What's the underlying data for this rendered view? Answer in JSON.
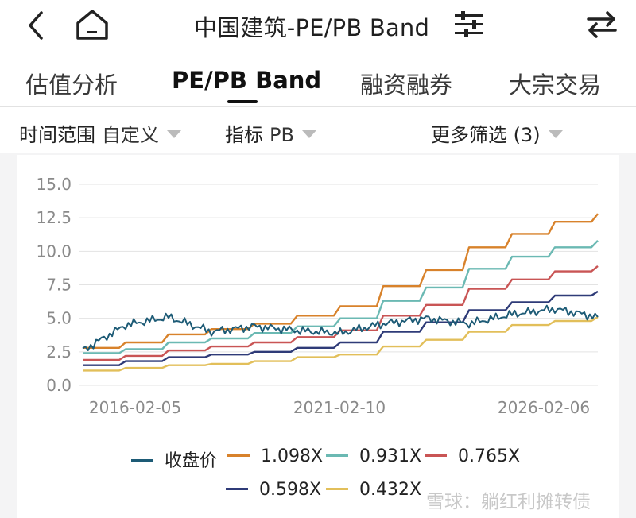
{
  "header": {
    "title": "中国建筑-PE/PB Band",
    "back_icon": "chevron-left-icon",
    "home_icon": "home-icon",
    "settings_icon": "sliders-icon",
    "switch_icon": "swap-arrows-icon"
  },
  "tabs": [
    {
      "label": "估值分析",
      "active": false
    },
    {
      "label": "PE/PB Band",
      "active": true
    },
    {
      "label": "融资融券",
      "active": false
    },
    {
      "label": "大宗交易",
      "active": false
    }
  ],
  "filters": {
    "time_label": "时间范围",
    "time_value": "自定义",
    "metric_label": "指标",
    "metric_value": "PB",
    "more_label": "更多筛选 (3)"
  },
  "chart_data": {
    "type": "line",
    "ylim": [
      0,
      15
    ],
    "yticks": [
      "15.0",
      "12.5",
      "10.0",
      "7.5",
      "5.0",
      "2.5",
      "0.0"
    ],
    "xticks": [
      "2016-02-05",
      "2021-02-10",
      "2026-02-06"
    ],
    "grid": true,
    "legend_position": "bottom",
    "x": [
      "2015-02",
      "2016-02",
      "2017-02",
      "2018-02",
      "2019-02",
      "2020-02",
      "2021-02",
      "2022-02",
      "2023-02",
      "2024-02",
      "2025-02",
      "2026-02",
      "2026-08"
    ],
    "series": [
      {
        "name": "收盘价",
        "color": "#1d5b76",
        "values": [
          2.6,
          4.5,
          5.1,
          4.0,
          4.4,
          4.1,
          3.9,
          4.6,
          5.0,
          4.6,
          5.3,
          5.7,
          5.1
        ]
      },
      {
        "name": "1.098X",
        "color": "#d8822b",
        "values": [
          2.8,
          3.2,
          3.8,
          4.2,
          4.6,
          5.2,
          5.9,
          7.4,
          8.6,
          10.3,
          11.3,
          12.2,
          12.8
        ]
      },
      {
        "name": "0.931X",
        "color": "#6bb9b3",
        "values": [
          2.4,
          2.7,
          3.2,
          3.5,
          3.9,
          4.4,
          5.0,
          6.3,
          7.3,
          8.7,
          9.6,
          10.3,
          10.8
        ]
      },
      {
        "name": "0.765X",
        "color": "#c95555",
        "values": [
          1.9,
          2.2,
          2.6,
          2.9,
          3.2,
          3.6,
          4.1,
          5.2,
          6.0,
          7.2,
          7.9,
          8.5,
          8.9
        ]
      },
      {
        "name": "0.598X",
        "color": "#2f3b78",
        "values": [
          1.5,
          1.8,
          2.1,
          2.3,
          2.5,
          2.8,
          3.2,
          4.0,
          4.7,
          5.6,
          6.2,
          6.7,
          7.0
        ]
      },
      {
        "name": "0.432X",
        "color": "#e2bf5a",
        "values": [
          1.1,
          1.3,
          1.5,
          1.6,
          1.8,
          2.1,
          2.3,
          2.9,
          3.4,
          4.0,
          4.5,
          4.8,
          5.1
        ]
      }
    ]
  },
  "watermark": "雪球：躺红利摊转债"
}
